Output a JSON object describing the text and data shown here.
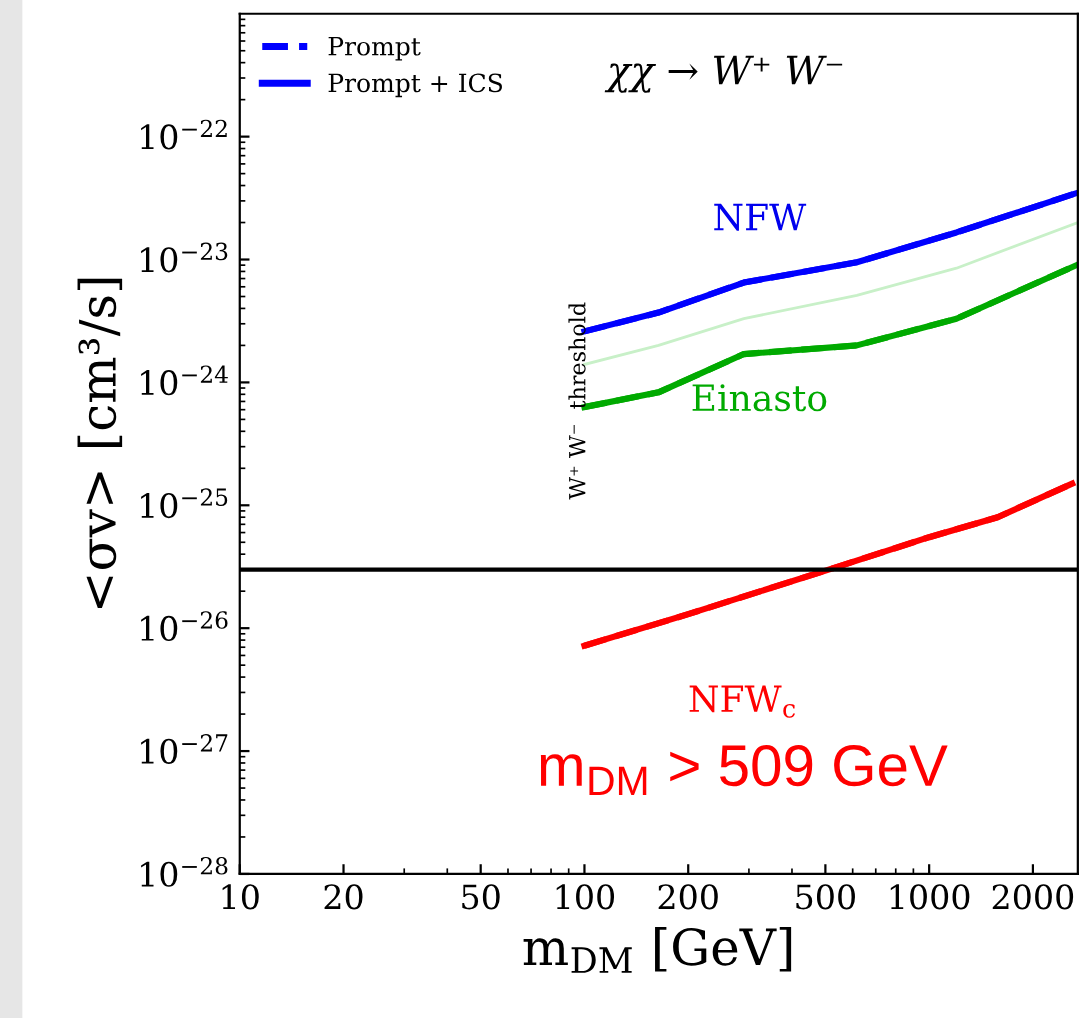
{
  "chart_data": {
    "type": "line",
    "log": "xy",
    "xlabel": "m$_{DM}$ [GeV]",
    "ylabel": "<σv> [cm³/s]",
    "x": [
      100,
      164,
      290,
      617,
      1200,
      2700
    ],
    "series": [
      {
        "name": "Prompt",
        "color": "#0000ff",
        "line_style": "dashed",
        "values": [
          2.6e-24,
          3.7e-24,
          6.5e-24,
          9.5e-24,
          1.66e-23,
          3.5e-23
        ]
      },
      {
        "name": "Prompt + ICS",
        "color": "#0000ff",
        "line_style": "solid",
        "values": [
          2.6e-24,
          3.7e-24,
          6.5e-24,
          9.5e-24,
          1.66e-23,
          3.5e-23
        ]
      },
      {
        "color": "#c8f0c8",
        "line_style": "solid",
        "values": [
          1.4e-24,
          2e-24,
          3.3e-24,
          5.1e-24,
          8.5e-24,
          2e-23
        ]
      },
      {
        "color": "#00aa00",
        "line_style": "dashed",
        "values": [
          6.3e-25,
          8.3e-25,
          1.7e-24,
          2e-24,
          3.3e-24,
          9.1e-24
        ]
      },
      {
        "color": "#00aa00",
        "line_style": "solid",
        "values": [
          6.3e-25,
          8.3e-25,
          1.7e-24,
          2e-24,
          3.3e-24,
          9.1e-24
        ]
      },
      {
        "x": [
          100,
          200,
          550,
          1000,
          1580,
          2600
        ],
        "color": "#ff0000",
        "line_style": "dashed",
        "values": [
          7.2e-27,
          1.3e-26,
          3.2e-26,
          5.5e-26,
          8e-26,
          1.5e-25
        ]
      },
      {
        "x": [
          100,
          200,
          550,
          1000,
          1580,
          2600
        ],
        "color": "#ff0000",
        "line_style": "solid",
        "values": [
          7.2e-27,
          1.3e-26,
          3.2e-26,
          5.5e-26,
          8e-26,
          1.5e-25
        ]
      }
    ],
    "xlim": [
      10,
      2700
    ],
    "ylim": [
      1e-28,
      1e-21
    ],
    "xticks": [
      10,
      20,
      50,
      100,
      200,
      500,
      1000,
      2000
    ],
    "yticks": [
      {
        "value": 1e-28,
        "label": "10$^{−28}$"
      },
      {
        "value": 1e-27,
        "label": "10$^{−27}$"
      },
      {
        "value": 1e-26,
        "label": "10$^{−26}$"
      },
      {
        "value": 1e-25,
        "label": "10$^{−25}$"
      },
      {
        "value": 1e-24,
        "label": "10$^{−24}$"
      },
      {
        "value": 1e-23,
        "label": "10$^{−23}$"
      },
      {
        "value": 1e-22,
        "label": "10$^{−22}$"
      }
    ],
    "ref_lines": [
      {
        "axis": "y",
        "value": 3e-26,
        "color": "#000000"
      }
    ],
    "legend": "top left",
    "grid": false,
    "annotations": [
      "χχ → W⁺ W⁻",
      "W⁺ W⁻  threshold",
      "NFW",
      "Einasto",
      "NFW$_{c}$",
      "m$_{DM}$ > 509 GeV"
    ]
  }
}
